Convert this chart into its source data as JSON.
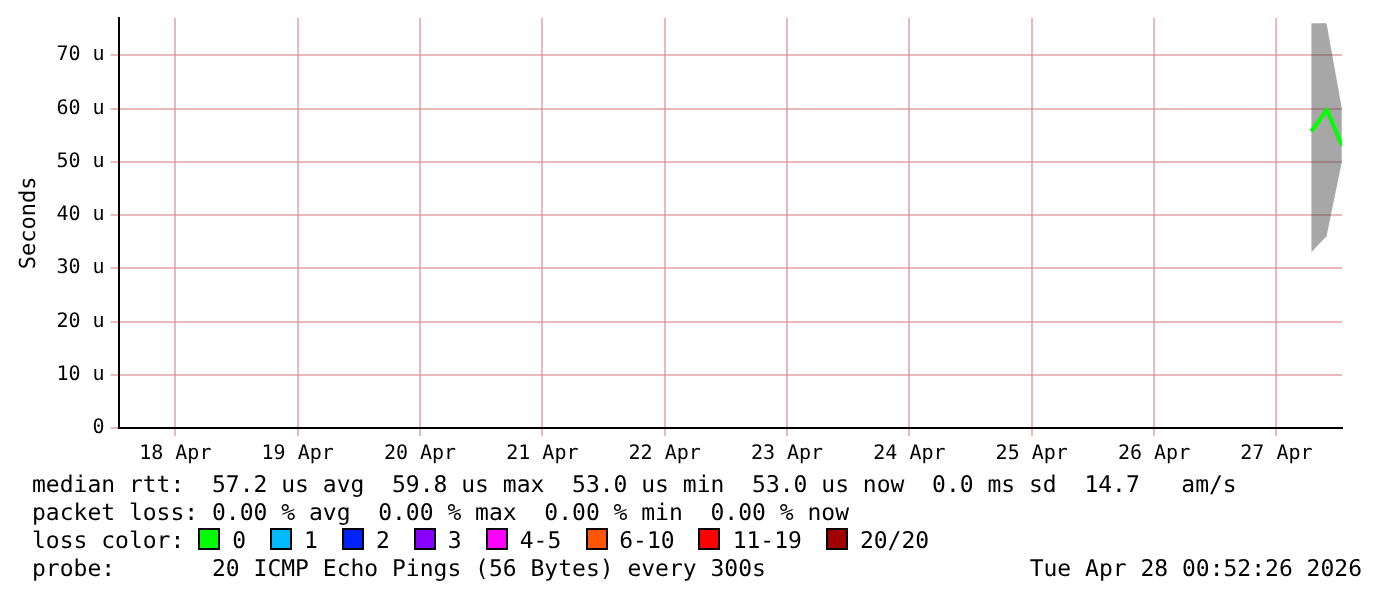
{
  "chart_data": {
    "type": "line",
    "ylabel": "Seconds",
    "x": [
      "2026-04-27T18:50",
      "2026-04-27T21:50",
      "2026-04-28T00:50"
    ],
    "xlim": [
      "2026-04-18T00:52",
      "2026-04-28T00:52"
    ],
    "xticks": [
      {
        "value": "2026-04-18T12:00",
        "label": "18 Apr"
      },
      {
        "value": "2026-04-19T12:00",
        "label": "19 Apr"
      },
      {
        "value": "2026-04-20T12:00",
        "label": "20 Apr"
      },
      {
        "value": "2026-04-21T12:00",
        "label": "21 Apr"
      },
      {
        "value": "2026-04-22T12:00",
        "label": "22 Apr"
      },
      {
        "value": "2026-04-23T12:00",
        "label": "23 Apr"
      },
      {
        "value": "2026-04-24T12:00",
        "label": "24 Apr"
      },
      {
        "value": "2026-04-25T12:00",
        "label": "25 Apr"
      },
      {
        "value": "2026-04-26T12:00",
        "label": "26 Apr"
      },
      {
        "value": "2026-04-27T12:00",
        "label": "27 Apr"
      }
    ],
    "ylim": [
      0,
      77
    ],
    "yticks": [
      0,
      {
        "value": 10,
        "label": "10 u"
      },
      {
        "value": 20,
        "label": "20 u"
      },
      {
        "value": 30,
        "label": "30 u"
      },
      {
        "value": 40,
        "label": "40 u"
      },
      {
        "value": 50,
        "label": "50 u"
      },
      {
        "value": 60,
        "label": "60 u"
      },
      {
        "value": 70,
        "label": "70 u"
      }
    ],
    "series": [
      {
        "name": "0",
        "color": "#00ff00",
        "values": [
          55.7,
          59.8,
          53.0
        ],
        "lower": [
          33,
          36,
          50
        ],
        "upper": [
          76,
          76,
          60
        ]
      },
      {
        "name": "1",
        "color": "#00bbff",
        "values": [
          null,
          null,
          null
        ]
      },
      {
        "name": "2",
        "color": "#0022ff",
        "values": [
          null,
          null,
          null
        ]
      },
      {
        "name": "3",
        "color": "#8a00ff",
        "values": [
          null,
          null,
          null
        ]
      },
      {
        "name": "4-5",
        "color": "#ff00ff",
        "values": [
          null,
          null,
          null
        ]
      },
      {
        "name": "6-10",
        "color": "#ff5500",
        "values": [
          null,
          null,
          null
        ]
      },
      {
        "name": "11-19",
        "color": "#ff0000",
        "values": [
          null,
          null,
          null
        ]
      },
      {
        "name": "20/20",
        "color": "#a10000",
        "values": [
          null,
          null,
          null
        ]
      }
    ],
    "legend": "bottom",
    "legend_title": "loss color:",
    "grid": true,
    "annotations": [
      "median rtt:  57.2 us avg  59.8 us max  53.0 us min  53.0 us now  0.0 ms sd  14.7   am/s",
      "packet loss: 0.00 % avg  0.00 % max  0.00 % min  0.00 % now",
      "probe:       20 ICMP Echo Pings (56 Bytes) every 300s",
      "Tue Apr 28 00:52:26 2026"
    ]
  }
}
